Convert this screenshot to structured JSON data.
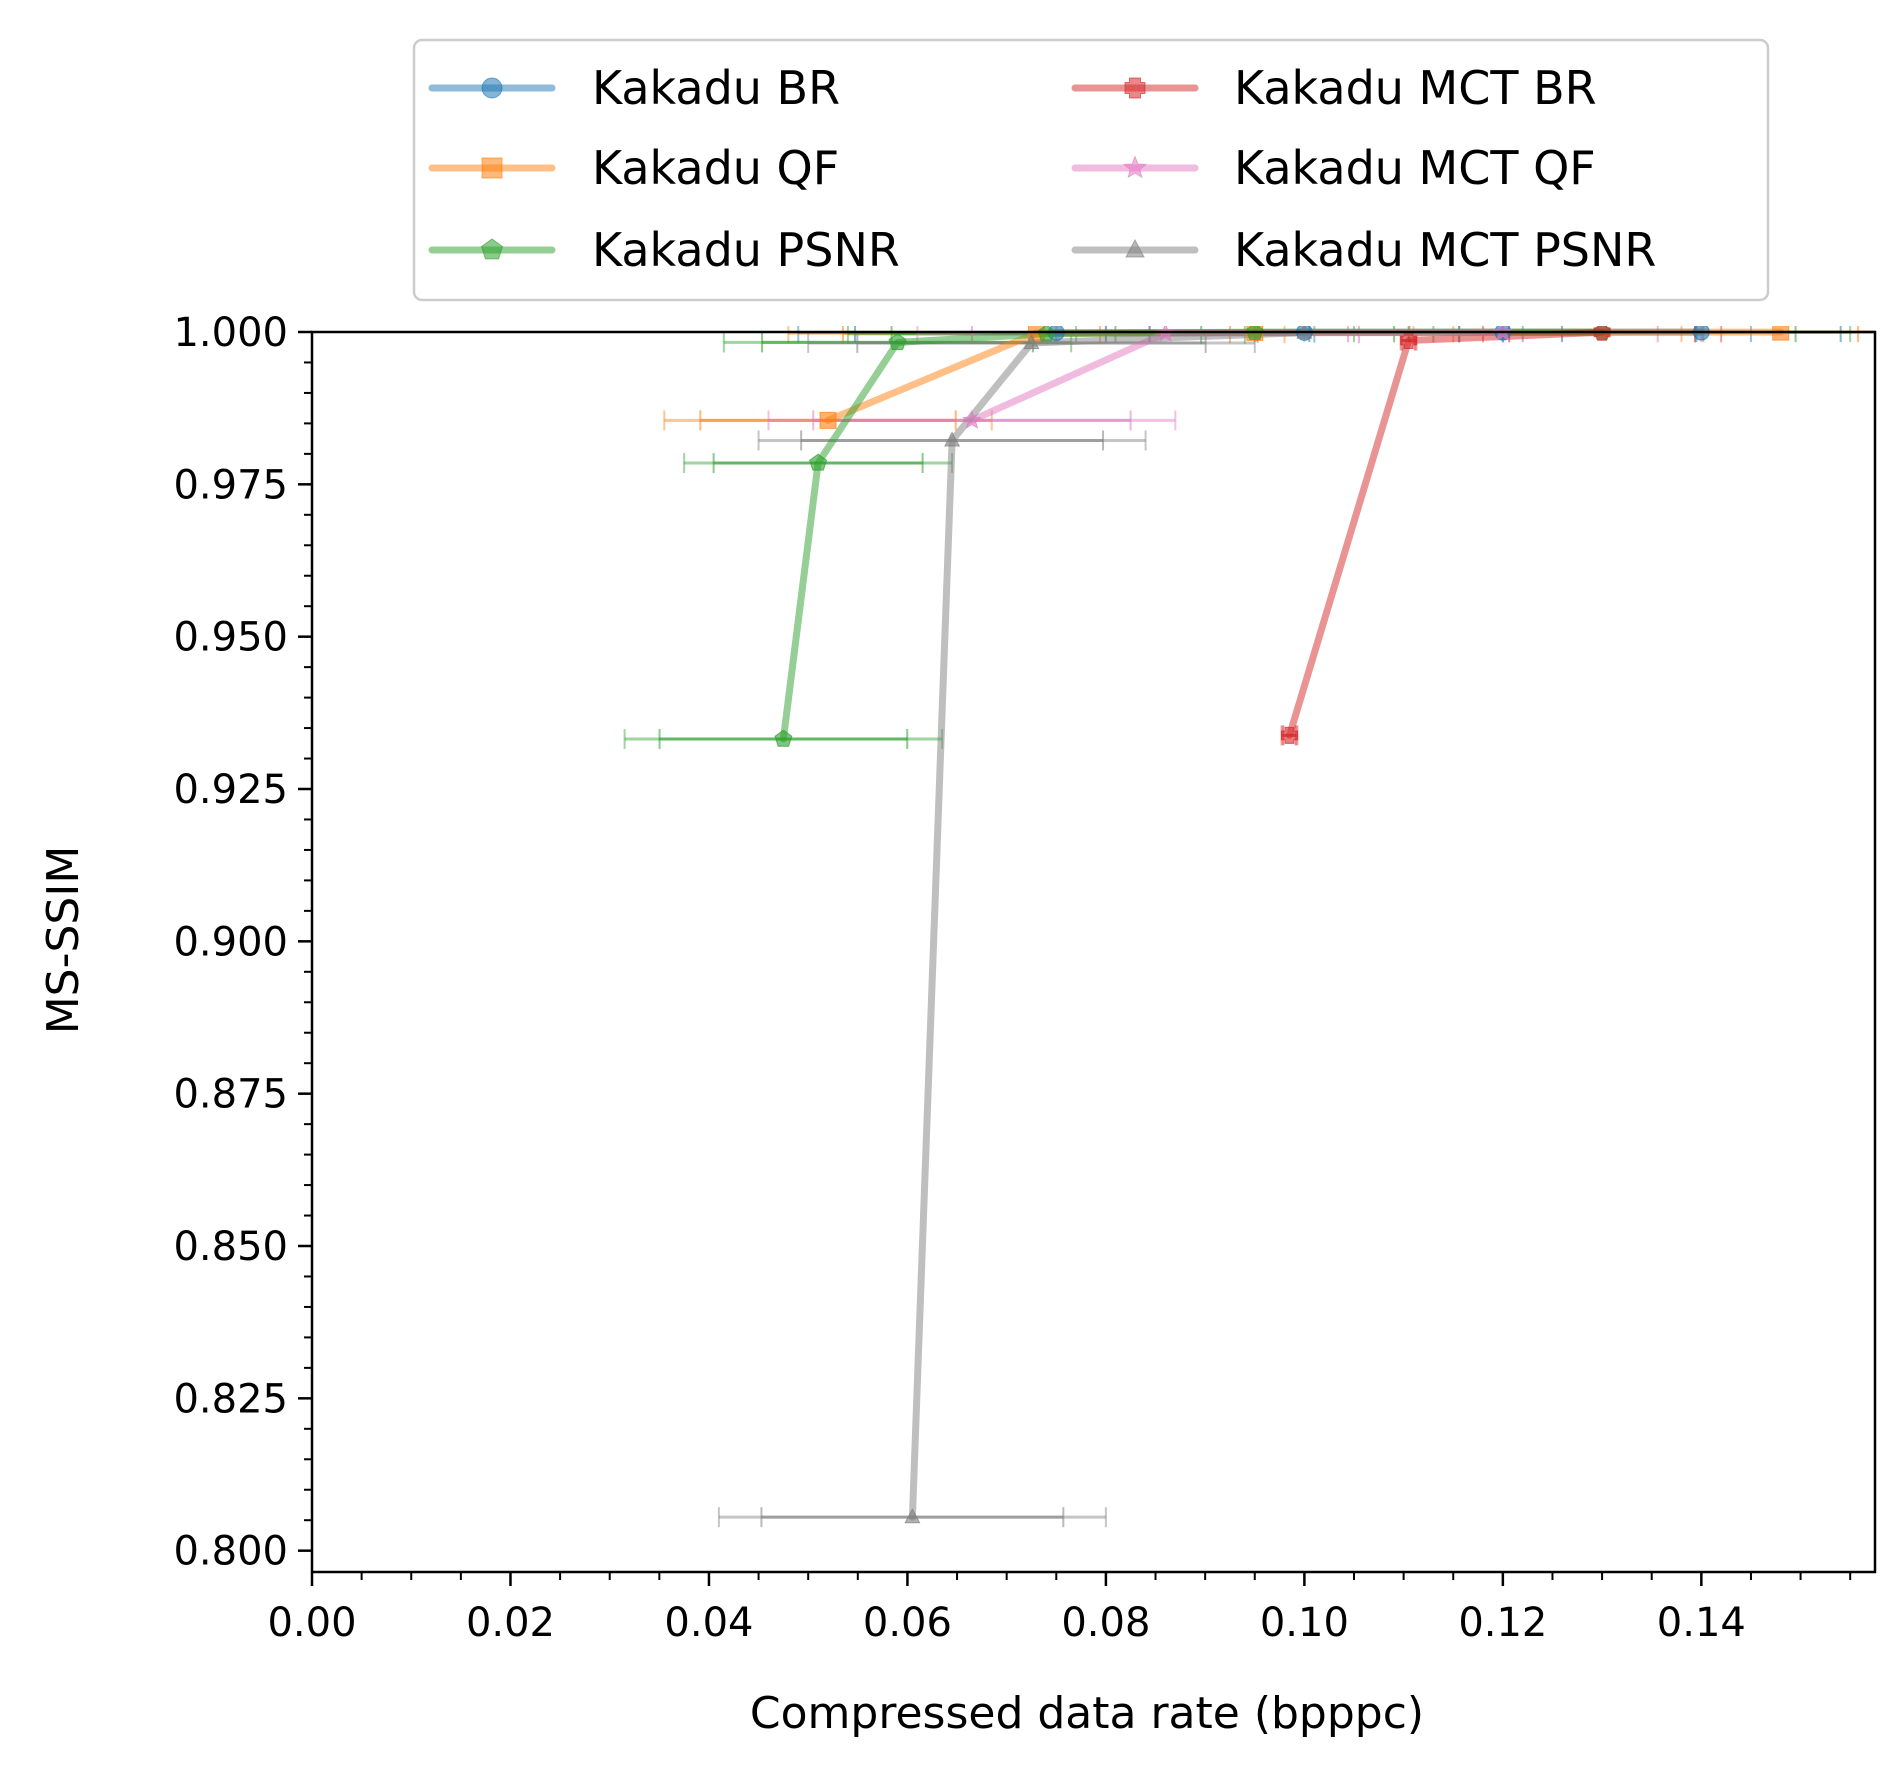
{
  "chart_data": {
    "type": "line",
    "title": "",
    "xlabel": "Compressed data rate (bpppc)",
    "ylabel": "MS-SSIM",
    "xlim": [
      0.0,
      0.1575
    ],
    "ylim": [
      0.7965,
      1.0
    ],
    "x_ticks": [
      "0.00",
      "0.02",
      "0.04",
      "0.06",
      "0.08",
      "0.10",
      "0.12",
      "0.14"
    ],
    "y_ticks": [
      "0.800",
      "0.825",
      "0.850",
      "0.875",
      "0.900",
      "0.925",
      "0.950",
      "0.975",
      "1.000"
    ],
    "grid": false,
    "legend_position": "top, above plot, 2 columns",
    "series": [
      {
        "name": "Kakadu BR",
        "color": "#1f77b4",
        "marker": "circle",
        "points": [
          {
            "x": 0.075,
            "y": 0.9999,
            "xerr": 0.026
          },
          {
            "x": 0.1,
            "y": 0.99995,
            "xerr": 0.02
          },
          {
            "x": 0.12,
            "y": 0.99998,
            "xerr": 0.025
          },
          {
            "x": 0.14,
            "y": 0.99999,
            "xerr": 0.018
          }
        ]
      },
      {
        "name": "Kakadu QF",
        "color": "#ff7f0e",
        "marker": "square",
        "points": [
          {
            "x": 0.052,
            "y": 0.9855,
            "xerr": 0.0165
          },
          {
            "x": 0.073,
            "y": 0.9998,
            "xerr": 0.025
          },
          {
            "x": 0.095,
            "y": 0.99993,
            "xerr": 0.02
          },
          {
            "x": 0.148,
            "y": 0.99998,
            "xerr": 0.01
          }
        ]
      },
      {
        "name": "Kakadu PSNR",
        "color": "#2ca02c",
        "marker": "pentagon",
        "points": [
          {
            "x": 0.0475,
            "y": 0.9332,
            "xerr": 0.016
          },
          {
            "x": 0.051,
            "y": 0.9785,
            "xerr": 0.0135
          },
          {
            "x": 0.059,
            "y": 0.9983,
            "xerr": 0.0175
          },
          {
            "x": 0.074,
            "y": 0.9997,
            "xerr": 0.02
          },
          {
            "x": 0.095,
            "y": 0.99995,
            "xerr": 0.018
          },
          {
            "x": 0.13,
            "y": 0.99998,
            "xerr": 0.025
          }
        ]
      },
      {
        "name": "Kakadu MCT BR",
        "color": "#d62728",
        "marker": "plus",
        "points": [
          {
            "x": 0.0985,
            "y": 0.9338,
            "xerr": 0.0008
          },
          {
            "x": 0.1105,
            "y": 0.9986,
            "xerr": 0.0008
          },
          {
            "x": 0.13,
            "y": 0.99995,
            "xerr": 0.012
          }
        ]
      },
      {
        "name": "Kakadu MCT QF",
        "color": "#e377c2",
        "marker": "star",
        "points": [
          {
            "x": 0.0665,
            "y": 0.9855,
            "xerr": 0.0205
          },
          {
            "x": 0.086,
            "y": 0.9998,
            "xerr": 0.025
          },
          {
            "x": 0.12,
            "y": 0.99995,
            "xerr": 0.02
          }
        ]
      },
      {
        "name": "Kakadu MCT PSNR",
        "color": "#7f7f7f",
        "marker": "triangle",
        "points": [
          {
            "x": 0.0605,
            "y": 0.8055,
            "xerr": 0.0195
          },
          {
            "x": 0.0645,
            "y": 0.9822,
            "xerr": 0.0195
          },
          {
            "x": 0.0725,
            "y": 0.9982,
            "xerr": 0.0225
          },
          {
            "x": 0.1,
            "y": 0.9999,
            "xerr": 0.02
          }
        ]
      }
    ]
  }
}
